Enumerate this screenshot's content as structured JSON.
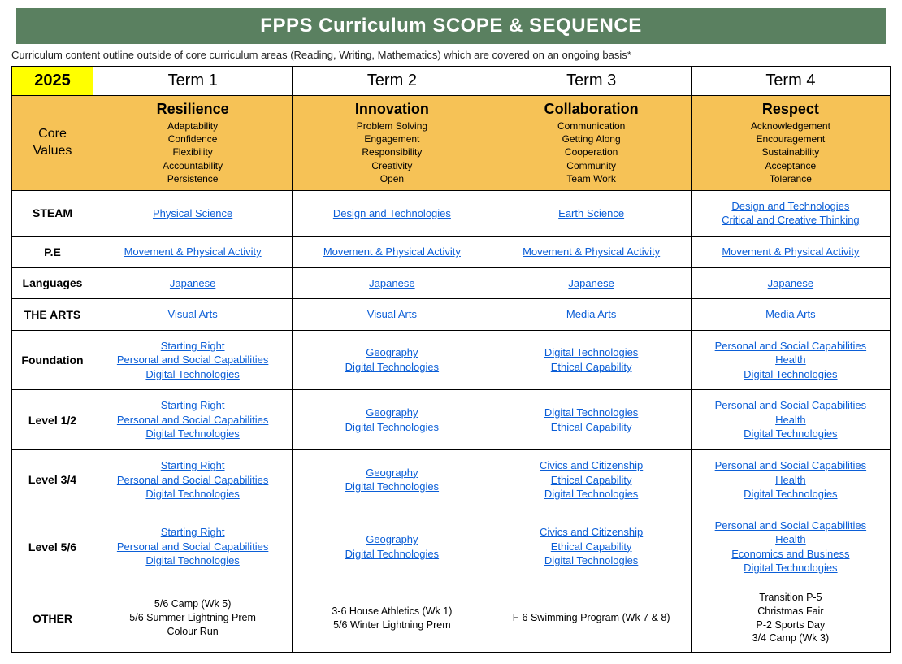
{
  "title": "FPPS Curriculum SCOPE & SEQUENCE",
  "subtitle": "Curriculum content outline outside of core curriculum areas (Reading, Writing, Mathematics) which are covered on an ongoing basis*",
  "year": "2025",
  "terms": [
    "Term 1",
    "Term 2",
    "Term 3",
    "Term 4"
  ],
  "coreValuesLabel": "Core\nValues",
  "coreValues": [
    {
      "title": "Resilience",
      "items": [
        "Adaptability",
        "Confidence",
        "Flexibility",
        "Accountability",
        "Persistence"
      ]
    },
    {
      "title": "Innovation",
      "items": [
        "Problem Solving",
        "Engagement",
        "Responsibility",
        "Creativity",
        "Open"
      ]
    },
    {
      "title": "Collaboration",
      "items": [
        "Communication",
        "Getting Along",
        "Cooperation",
        "Community",
        "Team Work"
      ]
    },
    {
      "title": "Respect",
      "items": [
        "Acknowledgement",
        "Encouragement",
        "Sustainability",
        "Acceptance",
        "Tolerance"
      ]
    }
  ],
  "rows": [
    {
      "label": "STEAM",
      "cells": [
        [
          "Physical  Science"
        ],
        [
          "Design and Technologies"
        ],
        [
          "Earth Science"
        ],
        [
          "Design and Technologies",
          "Critical and Creative Thinking"
        ]
      ]
    },
    {
      "label": "P.E",
      "cells": [
        [
          "Movement & Physical Activity"
        ],
        [
          "Movement & Physical Activity"
        ],
        [
          "Movement & Physical Activity"
        ],
        [
          "Movement & Physical Activity"
        ]
      ]
    },
    {
      "label": "Languages",
      "cells": [
        [
          "Japanese"
        ],
        [
          "Japanese"
        ],
        [
          "Japanese"
        ],
        [
          "Japanese"
        ]
      ]
    },
    {
      "label": "THE ARTS",
      "cells": [
        [
          "Visual Arts"
        ],
        [
          "Visual Arts"
        ],
        [
          "Media Arts"
        ],
        [
          "Media Arts"
        ]
      ]
    },
    {
      "label": "Foundation",
      "cells": [
        [
          "Starting Right",
          "Personal and Social Capabilities",
          "Digital Technologies"
        ],
        [
          "Geography",
          "Digital Technologies"
        ],
        [
          "Digital Technologies",
          "Ethical Capability"
        ],
        [
          "Personal and Social Capabilities",
          "Health",
          "Digital Technologies"
        ]
      ]
    },
    {
      "label": "Level 1/2",
      "cells": [
        [
          "Starting Right",
          "Personal and Social Capabilities",
          "Digital Technologies"
        ],
        [
          "Geography",
          "Digital Technologies"
        ],
        [
          "Digital Technologies",
          "Ethical Capability"
        ],
        [
          "Personal and Social Capabilities",
          "Health",
          "Digital Technologies"
        ]
      ]
    },
    {
      "label": "Level 3/4",
      "cells": [
        [
          "Starting Right",
          "Personal and Social Capabilities",
          "Digital Technologies"
        ],
        [
          "Geography",
          "Digital Technologies"
        ],
        [
          "Civics and Citizenship",
          "Ethical Capability",
          "Digital Technologies"
        ],
        [
          "Personal and Social Capabilities",
          "Health",
          "Digital Technologies"
        ]
      ]
    },
    {
      "label": "Level 5/6",
      "cells": [
        [
          "Starting Right",
          "Personal and Social Capabilities",
          "Digital Technologies"
        ],
        [
          "Geography",
          "Digital Technologies"
        ],
        [
          "Civics and Citizenship",
          "Ethical Capability",
          "Digital Technologies"
        ],
        [
          "Personal and Social Capabilities",
          "Health",
          "Economics and Business",
          "Digital Technologies"
        ]
      ]
    }
  ],
  "otherLabel": "OTHER",
  "other": [
    [
      "5/6 Camp (Wk 5)",
      "5/6 Summer Lightning Prem",
      "Colour Run"
    ],
    [
      "3-6 House Athletics (Wk 1)",
      "5/6 Winter Lightning Prem"
    ],
    [
      "F-6 Swimming Program (Wk 7 & 8)"
    ],
    [
      "Transition P-5",
      "Christmas Fair",
      "P-2 Sports Day",
      "3/4 Camp (Wk 3)"
    ]
  ],
  "colors": {
    "titleBg": "#5a8060",
    "titleText": "#ffffff",
    "yearBg": "#ffff00",
    "coreValuesBg": "#f6c256",
    "link": "#0b5ed7",
    "border": "#000000"
  }
}
